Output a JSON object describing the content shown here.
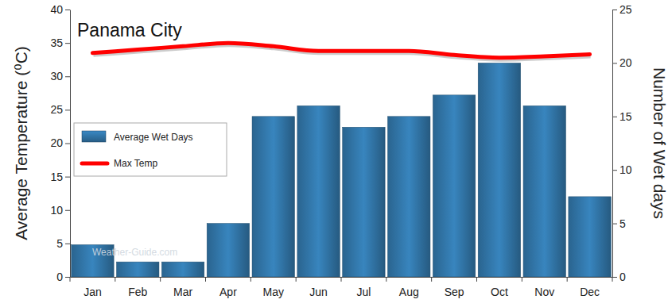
{
  "chart_data": {
    "type": "bar",
    "title": "Panama City",
    "y_label": "Average Temperature (⁰C)",
    "y2_label": "Number of Wet days",
    "annotations": [
      "Weather-Guide.com"
    ],
    "categories": [
      "Jan",
      "Feb",
      "Mar",
      "Apr",
      "May",
      "Jun",
      "Jul",
      "Aug",
      "Sep",
      "Oct",
      "Nov",
      "Dec"
    ],
    "series": [
      {
        "name": "Average Wet Days",
        "type": "bar",
        "axis": "y2",
        "color": "#2f6f9f",
        "values": [
          3,
          1.4,
          1.4,
          5,
          15,
          16,
          14,
          15,
          17,
          20,
          16,
          7.5
        ]
      },
      {
        "name": "Max Temp",
        "type": "line",
        "color": "#ff0000",
        "values": [
          33.5,
          34,
          34.5,
          35,
          34.5,
          33.8,
          33.8,
          33.8,
          33.2,
          32.8,
          33,
          33.3
        ]
      }
    ],
    "ylim": [
      0,
      40
    ],
    "yticks": [
      0,
      5,
      10,
      15,
      20,
      25,
      30,
      35,
      40
    ],
    "y2lim": [
      0,
      25
    ],
    "y2ticks": [
      0,
      5,
      10,
      15,
      20,
      25
    ],
    "grid": false,
    "legend": "left"
  }
}
